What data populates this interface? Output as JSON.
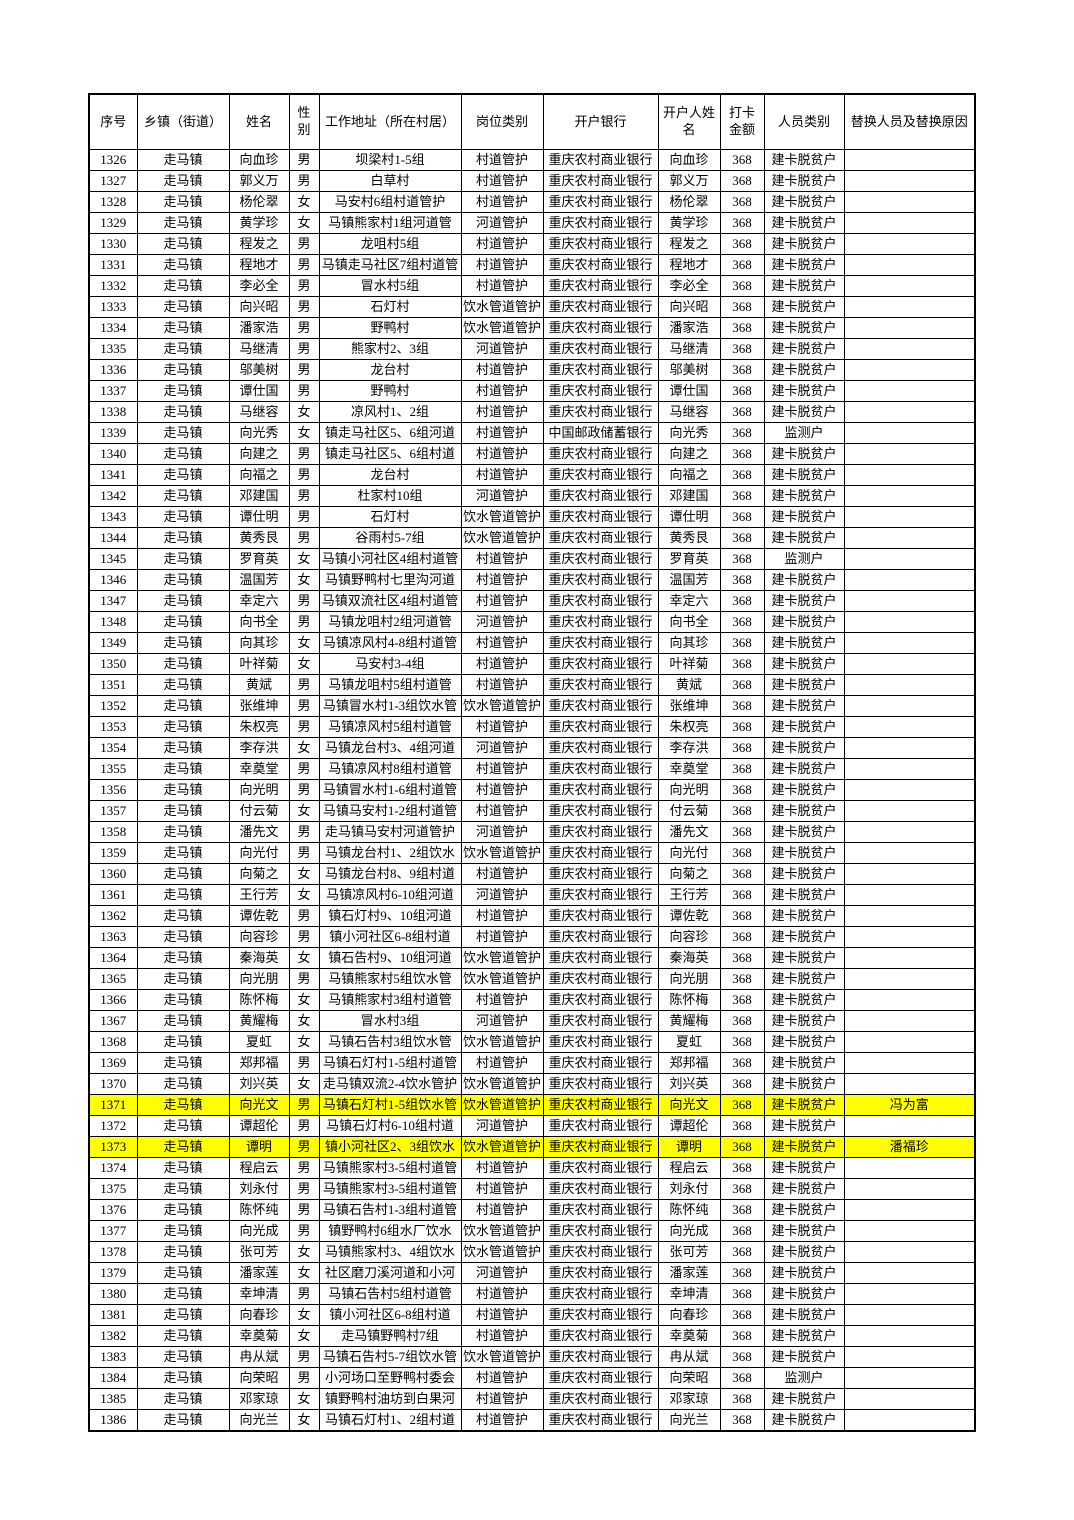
{
  "table": {
    "highlight_color": "#ffff00",
    "text_color": "#000000",
    "border_color": "#000000",
    "columns": [
      {
        "key": "seq",
        "label": "序号"
      },
      {
        "key": "township",
        "label": "乡镇（街道）"
      },
      {
        "key": "name",
        "label": "姓名"
      },
      {
        "key": "gender",
        "label": "性别"
      },
      {
        "key": "address",
        "label": "工作地址（所在村居）"
      },
      {
        "key": "post",
        "label": "岗位类别"
      },
      {
        "key": "bank",
        "label": "开户银行"
      },
      {
        "key": "payee",
        "label": "开户人姓名"
      },
      {
        "key": "amount",
        "label": "打卡金额"
      },
      {
        "key": "category",
        "label": "人员类别"
      },
      {
        "key": "replacement",
        "label": "替换人员及替换原因"
      }
    ],
    "highlighted_rows": [
      "1371",
      "1373"
    ],
    "rows": [
      [
        "1326",
        "走马镇",
        "向血珍",
        "男",
        "坝梁村1-5组",
        "村道管护",
        "重庆农村商业银行",
        "向血珍",
        "368",
        "建卡脱贫户",
        ""
      ],
      [
        "1327",
        "走马镇",
        "郭义万",
        "男",
        "白草村",
        "村道管护",
        "重庆农村商业银行",
        "郭义万",
        "368",
        "建卡脱贫户",
        ""
      ],
      [
        "1328",
        "走马镇",
        "杨伦翠",
        "女",
        "马安村6组村道管护",
        "村道管护",
        "重庆农村商业银行",
        "杨伦翠",
        "368",
        "建卡脱贫户",
        ""
      ],
      [
        "1329",
        "走马镇",
        "黄学珍",
        "女",
        "马镇熊家村1组河道管",
        "河道管护",
        "重庆农村商业银行",
        "黄学珍",
        "368",
        "建卡脱贫户",
        ""
      ],
      [
        "1330",
        "走马镇",
        "程发之",
        "男",
        "龙咀村5组",
        "村道管护",
        "重庆农村商业银行",
        "程发之",
        "368",
        "建卡脱贫户",
        ""
      ],
      [
        "1331",
        "走马镇",
        "程地才",
        "男",
        "马镇走马社区7组村道管",
        "村道管护",
        "重庆农村商业银行",
        "程地才",
        "368",
        "建卡脱贫户",
        ""
      ],
      [
        "1332",
        "走马镇",
        "李必全",
        "男",
        "冒水村5组",
        "村道管护",
        "重庆农村商业银行",
        "李必全",
        "368",
        "建卡脱贫户",
        ""
      ],
      [
        "1333",
        "走马镇",
        "向兴昭",
        "男",
        "石灯村",
        "饮水管道管护",
        "重庆农村商业银行",
        "向兴昭",
        "368",
        "建卡脱贫户",
        ""
      ],
      [
        "1334",
        "走马镇",
        "潘家浩",
        "男",
        "野鸭村",
        "饮水管道管护",
        "重庆农村商业银行",
        "潘家浩",
        "368",
        "建卡脱贫户",
        ""
      ],
      [
        "1335",
        "走马镇",
        "马继清",
        "男",
        "熊家村2、3组",
        "河道管护",
        "重庆农村商业银行",
        "马继清",
        "368",
        "建卡脱贫户",
        ""
      ],
      [
        "1336",
        "走马镇",
        "邬美树",
        "男",
        "龙台村",
        "村道管护",
        "重庆农村商业银行",
        "邬美树",
        "368",
        "建卡脱贫户",
        ""
      ],
      [
        "1337",
        "走马镇",
        "谭仕国",
        "男",
        "野鸭村",
        "村道管护",
        "重庆农村商业银行",
        "谭仕国",
        "368",
        "建卡脱贫户",
        ""
      ],
      [
        "1338",
        "走马镇",
        "马继容",
        "女",
        "凉风村1、2组",
        "村道管护",
        "重庆农村商业银行",
        "马继容",
        "368",
        "建卡脱贫户",
        ""
      ],
      [
        "1339",
        "走马镇",
        "向光秀",
        "女",
        "镇走马社区5、6组河道",
        "村道管护",
        "中国邮政储蓄银行",
        "向光秀",
        "368",
        "监测户",
        ""
      ],
      [
        "1340",
        "走马镇",
        "向建之",
        "男",
        "镇走马社区5、6组村道",
        "村道管护",
        "重庆农村商业银行",
        "向建之",
        "368",
        "建卡脱贫户",
        ""
      ],
      [
        "1341",
        "走马镇",
        "向福之",
        "男",
        "龙台村",
        "村道管护",
        "重庆农村商业银行",
        "向福之",
        "368",
        "建卡脱贫户",
        ""
      ],
      [
        "1342",
        "走马镇",
        "邓建国",
        "男",
        "杜家村10组",
        "河道管护",
        "重庆农村商业银行",
        "邓建国",
        "368",
        "建卡脱贫户",
        ""
      ],
      [
        "1343",
        "走马镇",
        "谭仕明",
        "男",
        "石灯村",
        "饮水管道管护",
        "重庆农村商业银行",
        "谭仕明",
        "368",
        "建卡脱贫户",
        ""
      ],
      [
        "1344",
        "走马镇",
        "黄秀艮",
        "男",
        "谷雨村5-7组",
        "饮水管道管护",
        "重庆农村商业银行",
        "黄秀艮",
        "368",
        "建卡脱贫户",
        ""
      ],
      [
        "1345",
        "走马镇",
        "罗育英",
        "女",
        "马镇小河社区4组村道管",
        "村道管护",
        "重庆农村商业银行",
        "罗育英",
        "368",
        "监测户",
        ""
      ],
      [
        "1346",
        "走马镇",
        "温国芳",
        "女",
        "马镇野鸭村七里沟河道",
        "村道管护",
        "重庆农村商业银行",
        "温国芳",
        "368",
        "建卡脱贫户",
        ""
      ],
      [
        "1347",
        "走马镇",
        "幸定六",
        "男",
        "马镇双流社区4组村道管",
        "村道管护",
        "重庆农村商业银行",
        "幸定六",
        "368",
        "建卡脱贫户",
        ""
      ],
      [
        "1348",
        "走马镇",
        "向书全",
        "男",
        "马镇龙咀村2组河道管",
        "河道管护",
        "重庆农村商业银行",
        "向书全",
        "368",
        "建卡脱贫户",
        ""
      ],
      [
        "1349",
        "走马镇",
        "向其珍",
        "女",
        "马镇凉风村4-8组村道管",
        "村道管护",
        "重庆农村商业银行",
        "向其珍",
        "368",
        "建卡脱贫户",
        ""
      ],
      [
        "1350",
        "走马镇",
        "叶祥菊",
        "女",
        "马安村3-4组",
        "村道管护",
        "重庆农村商业银行",
        "叶祥菊",
        "368",
        "建卡脱贫户",
        ""
      ],
      [
        "1351",
        "走马镇",
        "黄斌",
        "男",
        "马镇龙咀村5组村道管",
        "村道管护",
        "重庆农村商业银行",
        "黄斌",
        "368",
        "建卡脱贫户",
        ""
      ],
      [
        "1352",
        "走马镇",
        "张维坤",
        "男",
        "马镇冒水村1-3组饮水管",
        "饮水管道管护",
        "重庆农村商业银行",
        "张维坤",
        "368",
        "建卡脱贫户",
        ""
      ],
      [
        "1353",
        "走马镇",
        "朱权亮",
        "男",
        "马镇凉风村5组村道管",
        "村道管护",
        "重庆农村商业银行",
        "朱权亮",
        "368",
        "建卡脱贫户",
        ""
      ],
      [
        "1354",
        "走马镇",
        "李存洪",
        "女",
        "马镇龙台村3、4组河道",
        "河道管护",
        "重庆农村商业银行",
        "李存洪",
        "368",
        "建卡脱贫户",
        ""
      ],
      [
        "1355",
        "走马镇",
        "幸奠堂",
        "男",
        "马镇凉风村8组村道管",
        "村道管护",
        "重庆农村商业银行",
        "幸奠堂",
        "368",
        "建卡脱贫户",
        ""
      ],
      [
        "1356",
        "走马镇",
        "向光明",
        "男",
        "马镇冒水村1-6组村道管",
        "村道管护",
        "重庆农村商业银行",
        "向光明",
        "368",
        "建卡脱贫户",
        ""
      ],
      [
        "1357",
        "走马镇",
        "付云菊",
        "女",
        "马镇马安村1-2组村道管",
        "村道管护",
        "重庆农村商业银行",
        "付云菊",
        "368",
        "建卡脱贫户",
        ""
      ],
      [
        "1358",
        "走马镇",
        "潘先文",
        "男",
        "走马镇马安村河道管护",
        "河道管护",
        "重庆农村商业银行",
        "潘先文",
        "368",
        "建卡脱贫户",
        ""
      ],
      [
        "1359",
        "走马镇",
        "向光付",
        "男",
        "马镇龙台村1、2组饮水",
        "饮水管道管护",
        "重庆农村商业银行",
        "向光付",
        "368",
        "建卡脱贫户",
        ""
      ],
      [
        "1360",
        "走马镇",
        "向菊之",
        "女",
        "马镇龙台村8、9组村道",
        "村道管护",
        "重庆农村商业银行",
        "向菊之",
        "368",
        "建卡脱贫户",
        ""
      ],
      [
        "1361",
        "走马镇",
        "王行芳",
        "女",
        "马镇凉风村6-10组河道",
        "河道管护",
        "重庆农村商业银行",
        "王行芳",
        "368",
        "建卡脱贫户",
        ""
      ],
      [
        "1362",
        "走马镇",
        "谭佐乾",
        "男",
        "镇石灯村9、10组河道",
        "村道管护",
        "重庆农村商业银行",
        "谭佐乾",
        "368",
        "建卡脱贫户",
        ""
      ],
      [
        "1363",
        "走马镇",
        "向容珍",
        "男",
        "镇小河社区6-8组村道",
        "村道管护",
        "重庆农村商业银行",
        "向容珍",
        "368",
        "建卡脱贫户",
        ""
      ],
      [
        "1364",
        "走马镇",
        "秦海英",
        "女",
        "镇石告村9、10组河道",
        "饮水管道管护",
        "重庆农村商业银行",
        "秦海英",
        "368",
        "建卡脱贫户",
        ""
      ],
      [
        "1365",
        "走马镇",
        "向光朋",
        "男",
        "马镇熊家村5组饮水管",
        "饮水管道管护",
        "重庆农村商业银行",
        "向光朋",
        "368",
        "建卡脱贫户",
        ""
      ],
      [
        "1366",
        "走马镇",
        "陈怀梅",
        "女",
        "马镇熊家村3组村道管",
        "村道管护",
        "重庆农村商业银行",
        "陈怀梅",
        "368",
        "建卡脱贫户",
        ""
      ],
      [
        "1367",
        "走马镇",
        "黄耀梅",
        "女",
        "冒水村3组",
        "河道管护",
        "重庆农村商业银行",
        "黄耀梅",
        "368",
        "建卡脱贫户",
        ""
      ],
      [
        "1368",
        "走马镇",
        "夏虹",
        "女",
        "马镇石告村3组饮水管",
        "饮水管道管护",
        "重庆农村商业银行",
        "夏虹",
        "368",
        "建卡脱贫户",
        ""
      ],
      [
        "1369",
        "走马镇",
        "郑邦福",
        "男",
        "马镇石灯村1-5组村道管",
        "村道管护",
        "重庆农村商业银行",
        "郑邦福",
        "368",
        "建卡脱贫户",
        ""
      ],
      [
        "1370",
        "走马镇",
        "刘兴英",
        "女",
        "走马镇双流2-4饮水管护",
        "饮水管道管护",
        "重庆农村商业银行",
        "刘兴英",
        "368",
        "建卡脱贫户",
        ""
      ],
      [
        "1371",
        "走马镇",
        "向光文",
        "男",
        "马镇石灯村1-5组饮水管",
        "饮水管道管护",
        "重庆农村商业银行",
        "向光文",
        "368",
        "建卡脱贫户",
        "冯为富"
      ],
      [
        "1372",
        "走马镇",
        "谭超伦",
        "男",
        "马镇石灯村6-10组村道",
        "河道管护",
        "重庆农村商业银行",
        "谭超伦",
        "368",
        "建卡脱贫户",
        ""
      ],
      [
        "1373",
        "走马镇",
        "谭明",
        "男",
        "镇小河社区2、3组饮水",
        "饮水管道管护",
        "重庆农村商业银行",
        "谭明",
        "368",
        "建卡脱贫户",
        "潘福珍"
      ],
      [
        "1374",
        "走马镇",
        "程启云",
        "男",
        "马镇熊家村3-5组村道管",
        "村道管护",
        "重庆农村商业银行",
        "程启云",
        "368",
        "建卡脱贫户",
        ""
      ],
      [
        "1375",
        "走马镇",
        "刘永付",
        "男",
        "马镇熊家村3-5组村道管",
        "村道管护",
        "重庆农村商业银行",
        "刘永付",
        "368",
        "建卡脱贫户",
        ""
      ],
      [
        "1376",
        "走马镇",
        "陈怀纯",
        "男",
        "马镇石告村1-3组村道管",
        "村道管护",
        "重庆农村商业银行",
        "陈怀纯",
        "368",
        "建卡脱贫户",
        ""
      ],
      [
        "1377",
        "走马镇",
        "向光成",
        "男",
        "镇野鸭村6组水厂饮水",
        "饮水管道管护",
        "重庆农村商业银行",
        "向光成",
        "368",
        "建卡脱贫户",
        ""
      ],
      [
        "1378",
        "走马镇",
        "张可芳",
        "女",
        "马镇熊家村3、4组饮水",
        "饮水管道管护",
        "重庆农村商业银行",
        "张可芳",
        "368",
        "建卡脱贫户",
        ""
      ],
      [
        "1379",
        "走马镇",
        "潘家莲",
        "女",
        "社区磨刀溪河道和小河",
        "河道管护",
        "重庆农村商业银行",
        "潘家莲",
        "368",
        "建卡脱贫户",
        ""
      ],
      [
        "1380",
        "走马镇",
        "幸坤清",
        "男",
        "马镇石告村5组村道管",
        "村道管护",
        "重庆农村商业银行",
        "幸坤清",
        "368",
        "建卡脱贫户",
        ""
      ],
      [
        "1381",
        "走马镇",
        "向春珍",
        "女",
        "镇小河社区6-8组村道",
        "村道管护",
        "重庆农村商业银行",
        "向春珍",
        "368",
        "建卡脱贫户",
        ""
      ],
      [
        "1382",
        "走马镇",
        "幸奠菊",
        "女",
        "走马镇野鸭村7组",
        "村道管护",
        "重庆农村商业银行",
        "幸奠菊",
        "368",
        "建卡脱贫户",
        ""
      ],
      [
        "1383",
        "走马镇",
        "冉从斌",
        "男",
        "马镇石告村5-7组饮水管",
        "饮水管道管护",
        "重庆农村商业银行",
        "冉从斌",
        "368",
        "建卡脱贫户",
        ""
      ],
      [
        "1384",
        "走马镇",
        "向荣昭",
        "男",
        "小河场口至野鸭村委会",
        "村道管护",
        "重庆农村商业银行",
        "向荣昭",
        "368",
        "监测户",
        ""
      ],
      [
        "1385",
        "走马镇",
        "邓家琼",
        "女",
        "镇野鸭村油坊到白果河",
        "村道管护",
        "重庆农村商业银行",
        "邓家琼",
        "368",
        "建卡脱贫户",
        ""
      ],
      [
        "1386",
        "走马镇",
        "向光兰",
        "女",
        "马镇石灯村1、2组村道",
        "村道管护",
        "重庆农村商业银行",
        "向光兰",
        "368",
        "建卡脱贫户",
        ""
      ]
    ]
  }
}
